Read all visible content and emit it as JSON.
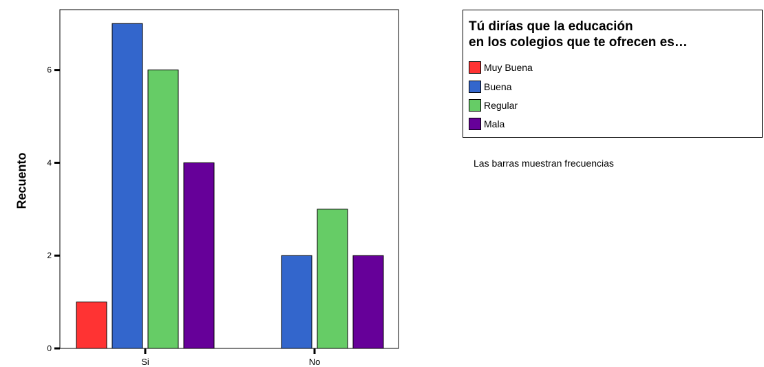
{
  "chart_data": {
    "type": "bar",
    "categories": [
      "Si",
      "No"
    ],
    "series": [
      {
        "name": "Muy Buena",
        "values": [
          1,
          null
        ]
      },
      {
        "name": "Buena",
        "values": [
          7,
          2
        ]
      },
      {
        "name": "Regular",
        "values": [
          6,
          3
        ]
      },
      {
        "name": "Mala",
        "values": [
          4,
          2
        ]
      }
    ],
    "colors": [
      "#ff3333",
      "#3366cc",
      "#66cc66",
      "#660099"
    ],
    "ylabel": "Recuento",
    "xlabel": "",
    "ylim": [
      0,
      7.3
    ],
    "yticks": [
      0,
      2,
      4,
      6
    ],
    "grid": false,
    "legend": {
      "title_lines": [
        "Tú dirías que la educación",
        "en los colegios que te ofrecen es…"
      ],
      "placement": "top-right"
    },
    "note": "Las barras muestran frecuencias"
  }
}
